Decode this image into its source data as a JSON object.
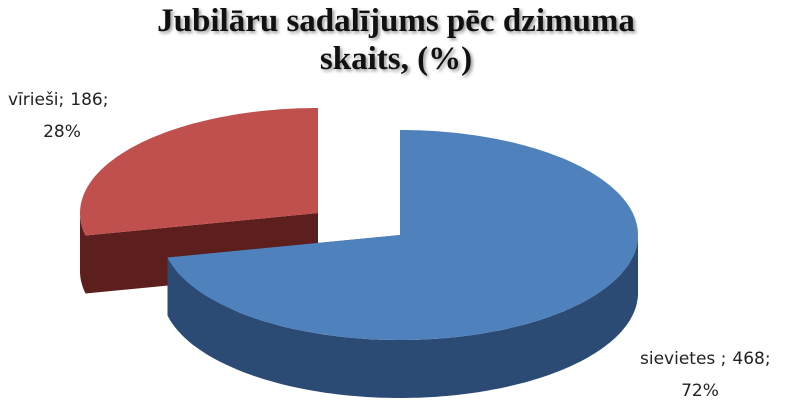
{
  "chart_data": {
    "type": "pie3d",
    "title": [
      "Jubilāru sadalījums pēc dzimuma",
      "skaits, (%)"
    ],
    "categories": [
      "sievietes ;",
      "vīrieši;"
    ],
    "values": [
      468,
      186
    ],
    "value_labels": [
      "468;",
      "186;"
    ],
    "percentages": [
      72,
      28
    ],
    "percentage_labels": [
      "72%",
      "28%"
    ],
    "colors": [
      "#4f81bd",
      "#c0504d"
    ],
    "side_colors": [
      "#2b4b75",
      "#5c1f1d"
    ]
  }
}
